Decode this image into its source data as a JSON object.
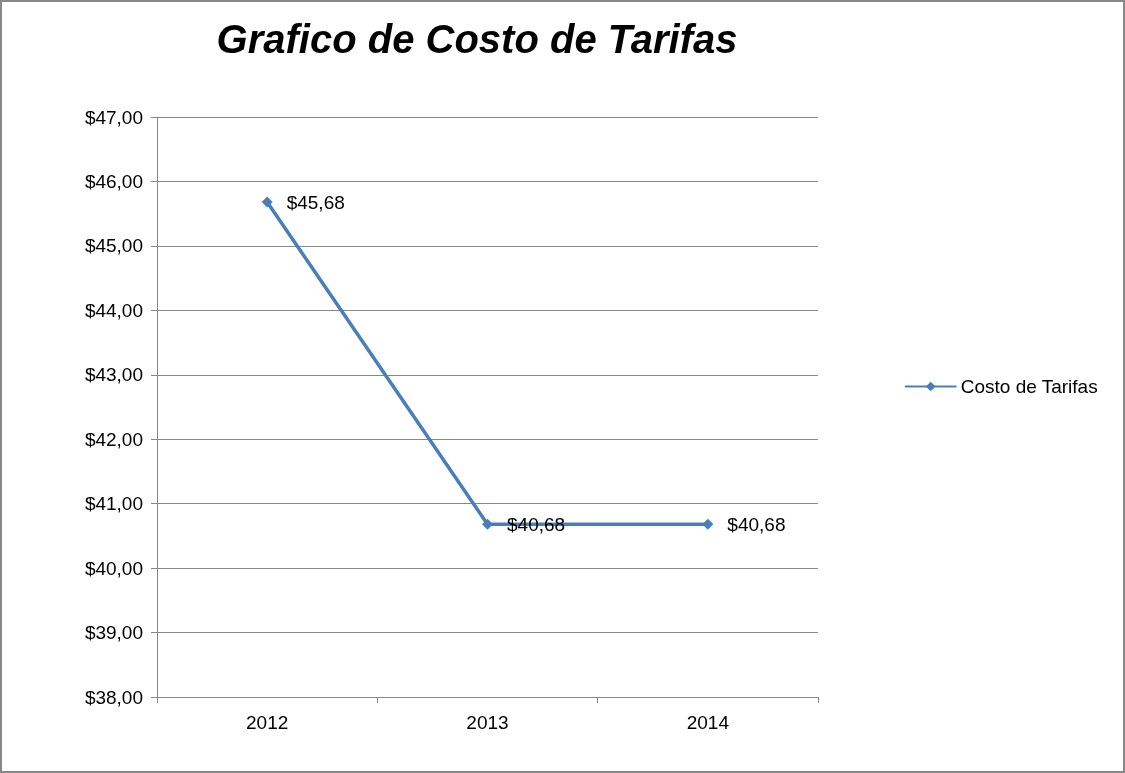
{
  "chart_data": {
    "type": "line",
    "title": "Grafico de Costo de Tarifas",
    "categories": [
      "2012",
      "2013",
      "2014"
    ],
    "series": [
      {
        "name": "Costo de Tarifas",
        "color": "#4a7ebb",
        "values": [
          45.68,
          40.68,
          40.68
        ],
        "value_labels": [
          "$45,68",
          "$40,68",
          "$40,68"
        ]
      }
    ],
    "ylim": [
      38,
      47
    ],
    "yticks": [
      {
        "value": 38,
        "label": "$38,00"
      },
      {
        "value": 39,
        "label": "$39,00"
      },
      {
        "value": 40,
        "label": "$40,00"
      },
      {
        "value": 41,
        "label": "$41,00"
      },
      {
        "value": 42,
        "label": "$42,00"
      },
      {
        "value": 43,
        "label": "$43,00"
      },
      {
        "value": 44,
        "label": "$44,00"
      },
      {
        "value": 45,
        "label": "$45,00"
      },
      {
        "value": 46,
        "label": "$46,00"
      },
      {
        "value": 47,
        "label": "$47,00"
      }
    ],
    "grid": "y",
    "legend": "right",
    "marker": "diamond",
    "line_style": "solid"
  }
}
